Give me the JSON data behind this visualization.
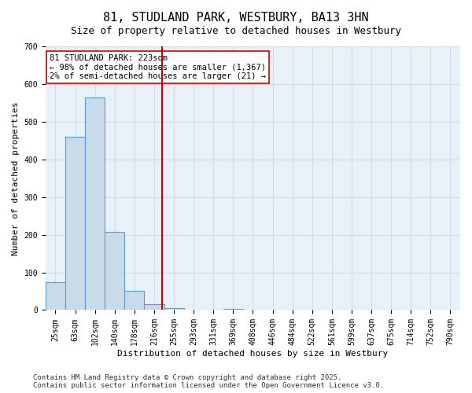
{
  "title": "81, STUDLAND PARK, WESTBURY, BA13 3HN",
  "subtitle": "Size of property relative to detached houses in Westbury",
  "xlabel": "Distribution of detached houses by size in Westbury",
  "ylabel": "Number of detached properties",
  "bar_labels": [
    "25sqm",
    "63sqm",
    "102sqm",
    "140sqm",
    "178sqm",
    "216sqm",
    "255sqm",
    "293sqm",
    "331sqm",
    "369sqm",
    "408sqm",
    "446sqm",
    "484sqm",
    "522sqm",
    "561sqm",
    "599sqm",
    "637sqm",
    "675sqm",
    "714sqm",
    "752sqm",
    "790sqm"
  ],
  "bar_values": [
    75,
    460,
    565,
    207,
    52,
    15,
    5,
    0,
    0,
    3,
    0,
    0,
    0,
    0,
    0,
    0,
    0,
    0,
    0,
    0,
    0
  ],
  "bar_color": "#c9daea",
  "bar_edge_color": "#5b9bd5",
  "property_line_x": 5.42,
  "property_line_color": "#cc0000",
  "annotation_text": "81 STUDLAND PARK: 223sqm\n← 98% of detached houses are smaller (1,367)\n2% of semi-detached houses are larger (21) →",
  "annotation_box_color": "#cc0000",
  "ylim": [
    0,
    700
  ],
  "yticks": [
    0,
    100,
    200,
    300,
    400,
    500,
    600,
    700
  ],
  "grid_color": "#d0dce8",
  "background_color": "#e8f0f8",
  "footer_text": "Contains HM Land Registry data © Crown copyright and database right 2025.\nContains public sector information licensed under the Open Government Licence v3.0.",
  "title_fontsize": 11,
  "subtitle_fontsize": 9,
  "xlabel_fontsize": 8,
  "ylabel_fontsize": 8,
  "tick_fontsize": 7,
  "annotation_fontsize": 7.5,
  "footer_fontsize": 6.5
}
